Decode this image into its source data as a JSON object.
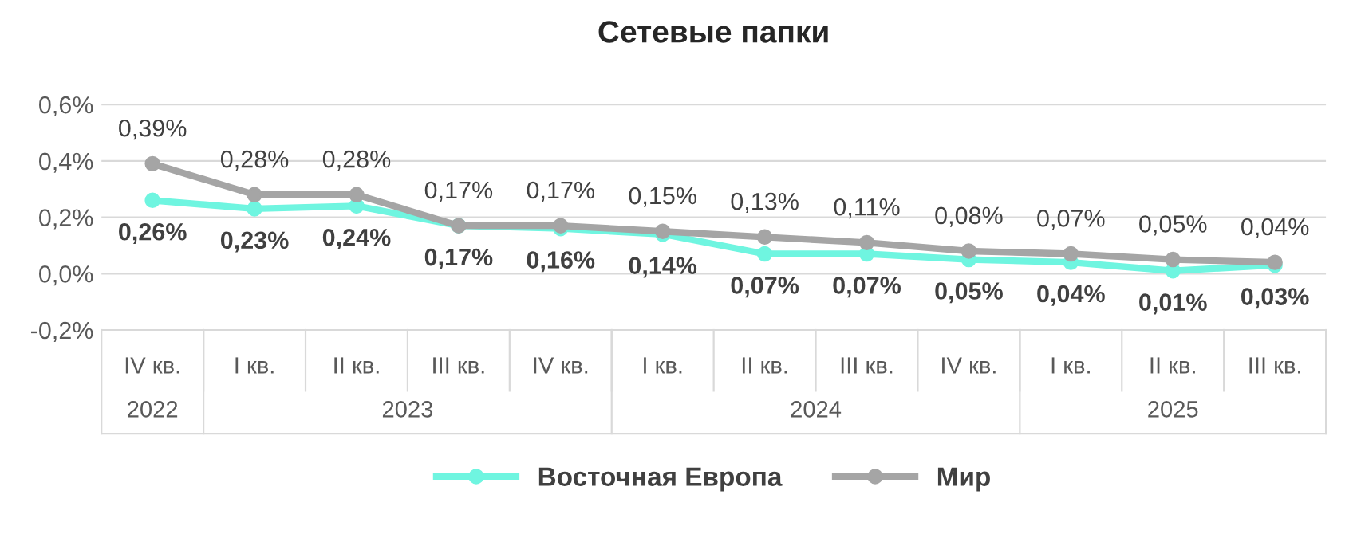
{
  "chart_data": {
    "type": "line",
    "title": "Сетевые папки",
    "categories": [
      "IV кв.",
      "I кв.",
      "II кв.",
      "III кв.",
      "IV кв.",
      "I кв.",
      "II кв.",
      "III кв.",
      "IV кв.",
      "I кв.",
      "II кв.",
      "III кв."
    ],
    "annotations": [
      "2022",
      "2023",
      "2024",
      "2025"
    ],
    "series": [
      {
        "name": "Восточная Европа",
        "color": "#6ff5e0",
        "values": [
          0.26,
          0.23,
          0.24,
          0.17,
          0.16,
          0.14,
          0.07,
          0.07,
          0.05,
          0.04,
          0.01,
          0.03
        ],
        "value_labels": [
          "0,26%",
          "0,23%",
          "0,24%",
          "0,17%",
          "0,16%",
          "0,14%",
          "0,07%",
          "0,07%",
          "0,05%",
          "0,04%",
          "0,01%",
          "0,03%"
        ]
      },
      {
        "name": "Мир",
        "color": "#a5a5a5",
        "values": [
          0.39,
          0.28,
          0.28,
          0.17,
          0.17,
          0.15,
          0.13,
          0.11,
          0.08,
          0.07,
          0.05,
          0.04
        ],
        "value_labels": [
          "0,39%",
          "0,28%",
          "0,28%",
          "0,17%",
          "0,17%",
          "0,15%",
          "0,13%",
          "0,11%",
          "0,08%",
          "0,07%",
          "0,05%",
          "0,04%"
        ]
      }
    ],
    "ylim": [
      -0.2,
      0.6
    ],
    "yticks": [
      {
        "value": -0.2,
        "label": "-0,2%"
      },
      {
        "value": 0.0,
        "label": "0,0%"
      },
      {
        "value": 0.2,
        "label": "0,2%"
      },
      {
        "value": 0.4,
        "label": "0,4%"
      },
      {
        "value": 0.6,
        "label": "0,6%"
      }
    ],
    "grid": "y",
    "legend": "bottom",
    "marker": "circle",
    "line_style": "solid"
  }
}
